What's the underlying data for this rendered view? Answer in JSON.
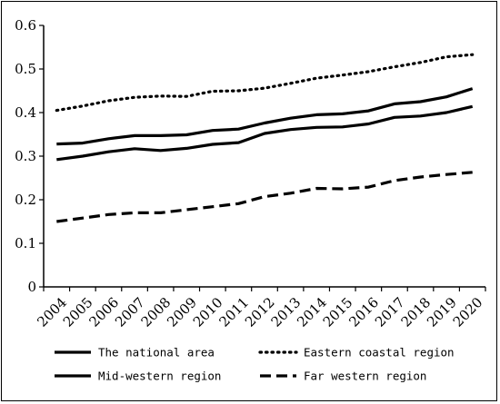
{
  "chart_data": {
    "type": "line",
    "title": "",
    "xlabel": "",
    "ylabel": "",
    "ylim": [
      0,
      0.6
    ],
    "y_ticks": [
      "0",
      "0.1",
      "0.2",
      "0.3",
      "0.4",
      "0.5",
      "0.6"
    ],
    "categories": [
      "2004",
      "2005",
      "2006",
      "2007",
      "2008",
      "2009",
      "2010",
      "2011",
      "2012",
      "2013",
      "2014",
      "2015",
      "2016",
      "2017",
      "2018",
      "2019",
      "2020"
    ],
    "grid": false,
    "legend_position": "bottom",
    "series": [
      {
        "name": "The national area",
        "style": "solid",
        "color": "#000000",
        "values": [
          0.328,
          0.33,
          0.34,
          0.347,
          0.347,
          0.349,
          0.359,
          0.362,
          0.376,
          0.387,
          0.395,
          0.397,
          0.404,
          0.42,
          0.425,
          0.436,
          0.455
        ]
      },
      {
        "name": "Eastern coastal region",
        "style": "dotted",
        "color": "#000000",
        "values": [
          0.405,
          0.415,
          0.427,
          0.435,
          0.438,
          0.437,
          0.449,
          0.45,
          0.456,
          0.467,
          0.479,
          0.486,
          0.494,
          0.505,
          0.515,
          0.528,
          0.533
        ]
      },
      {
        "name": "Mid-western region",
        "style": "solid",
        "color": "#000000",
        "values": [
          0.292,
          0.3,
          0.31,
          0.317,
          0.313,
          0.318,
          0.327,
          0.331,
          0.352,
          0.361,
          0.366,
          0.367,
          0.374,
          0.389,
          0.392,
          0.4,
          0.414
        ]
      },
      {
        "name": "Far western region",
        "style": "dashed",
        "color": "#000000",
        "values": [
          0.15,
          0.158,
          0.166,
          0.17,
          0.17,
          0.177,
          0.184,
          0.191,
          0.207,
          0.215,
          0.226,
          0.225,
          0.229,
          0.244,
          0.252,
          0.258,
          0.263
        ]
      }
    ]
  }
}
